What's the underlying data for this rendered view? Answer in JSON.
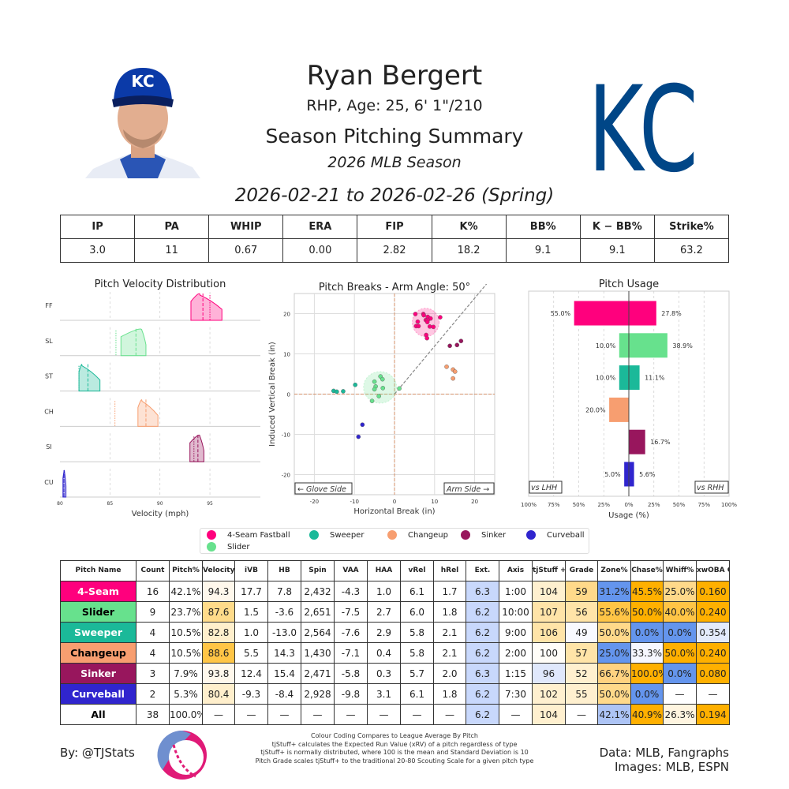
{
  "header": {
    "player_name": "Ryan Bergert",
    "bio": "RHP, Age: 25, 6' 1\"/210",
    "title": "Season Pitching Summary",
    "season": "2026 MLB Season",
    "date_range": "2026-02-21 to 2026-02-26 (Spring)",
    "team_logo_text": "KC",
    "cap_logo_text": "KC"
  },
  "season_stats": {
    "headers": [
      "IP",
      "PA",
      "WHIP",
      "ERA",
      "FIP",
      "K%",
      "BB%",
      "K − BB%",
      "Strike%"
    ],
    "values": [
      "3.0",
      "11",
      "0.67",
      "0.00",
      "2.82",
      "18.2",
      "9.1",
      "9.1",
      "63.2"
    ]
  },
  "pitch_colors": {
    "FF": "#FF007D",
    "SL": "#67E18D",
    "ST": "#1BB999",
    "CH": "#F79E70",
    "SI": "#98165D",
    "CU": "#3025CE"
  },
  "velocity_chart": {
    "title": "Pitch Velocity Distribution",
    "xlabel": "Velocity (mph)",
    "xlim": [
      80,
      100
    ],
    "xticks": [
      "80",
      "85",
      "90",
      "95"
    ],
    "rows": [
      {
        "code": "FF",
        "min": 93.1,
        "max": 96.2,
        "peak": 94.0,
        "mean": 94.3,
        "league": 95.0
      },
      {
        "code": "SL",
        "min": 86.1,
        "max": 88.6,
        "peak": 88.2,
        "mean": 87.6,
        "league": 85.6
      },
      {
        "code": "ST",
        "min": 81.9,
        "max": 84.0,
        "peak": 82.2,
        "mean": 82.8,
        "league": 81.9
      },
      {
        "code": "CH",
        "min": 87.8,
        "max": 89.8,
        "peak": 88.2,
        "mean": 88.6,
        "league": 85.5
      },
      {
        "code": "SI",
        "min": 93.0,
        "max": 94.4,
        "peak": 94.0,
        "mean": 93.8,
        "league": 93.4
      },
      {
        "code": "CU",
        "min": 80.3,
        "max": 80.6,
        "peak": 80.45,
        "mean": 80.4,
        "league": 80.4
      }
    ]
  },
  "break_chart": {
    "title": "Pitch Breaks - Arm Angle: 50°",
    "xlabel": "Horizontal Break (in)",
    "ylabel": "Induced Vertical Break (in)",
    "xlim": [
      -25,
      25
    ],
    "ylim": [
      -25,
      25
    ],
    "ticks": [
      "-20",
      "-10",
      "0",
      "10",
      "20"
    ],
    "arm_angle": 50,
    "glove_label": "← Glove Side",
    "arm_label": "Arm Side →",
    "points": {
      "FF": [
        [
          5.2,
          19.9
        ],
        [
          7.2,
          19.9
        ],
        [
          7.3,
          19.6
        ],
        [
          8.3,
          19.2
        ],
        [
          9.0,
          18.8
        ],
        [
          11.4,
          19.1
        ],
        [
          7.8,
          18.4
        ],
        [
          8.3,
          18.4
        ],
        [
          8.2,
          17.9
        ],
        [
          5.8,
          18.0
        ],
        [
          5.4,
          16.9
        ],
        [
          6.0,
          16.9
        ],
        [
          8.8,
          16.8
        ],
        [
          9.7,
          16.7
        ],
        [
          7.9,
          14.7
        ],
        [
          8.1,
          13.9
        ]
      ],
      "SL": [
        [
          -3.5,
          4.4
        ],
        [
          -3.0,
          3.7
        ],
        [
          -5.0,
          3.1
        ],
        [
          -4.7,
          1.9
        ],
        [
          -5.0,
          1.2
        ],
        [
          -2.9,
          1.5
        ],
        [
          -3.9,
          -0.5
        ],
        [
          -5.6,
          -1.7
        ],
        [
          1.2,
          1.4
        ]
      ],
      "ST": [
        [
          -15.2,
          0.8
        ],
        [
          -14.4,
          0.6
        ],
        [
          -12.8,
          0.7
        ],
        [
          -9.8,
          2.3
        ]
      ],
      "CH": [
        [
          13.0,
          6.8
        ],
        [
          14.6,
          6.1
        ],
        [
          15.1,
          5.6
        ],
        [
          14.6,
          3.9
        ]
      ],
      "SI": [
        [
          13.8,
          12.0
        ],
        [
          15.6,
          12.2
        ],
        [
          16.6,
          13.2
        ]
      ],
      "CU": [
        [
          -8.0,
          -7.6
        ],
        [
          -9.0,
          -10.6
        ]
      ]
    }
  },
  "usage_chart": {
    "title": "Pitch Usage",
    "xlabel": "Usage (%)",
    "xticks": [
      "100%",
      "75%",
      "50%",
      "25%",
      "0%",
      "25%",
      "50%",
      "75%",
      "100%"
    ],
    "lhh_label": "vs LHH",
    "rhh_label": "vs RHH",
    "bars": [
      {
        "code": "FF",
        "lhh": 55.0,
        "rhh": 27.8,
        "lhh_label": "55.0%",
        "rhh_label": "27.8%"
      },
      {
        "code": "SL",
        "lhh": 10.0,
        "rhh": 38.9,
        "lhh_label": "10.0%",
        "rhh_label": "38.9%"
      },
      {
        "code": "ST",
        "lhh": 10.0,
        "rhh": 11.1,
        "lhh_label": "10.0%",
        "rhh_label": "11.1%"
      },
      {
        "code": "CH",
        "lhh": 20.0,
        "rhh": 0,
        "lhh_label": "20.0%",
        "rhh_label": ""
      },
      {
        "code": "SI",
        "lhh": 0,
        "rhh": 16.7,
        "lhh_label": "",
        "rhh_label": "16.7%"
      },
      {
        "code": "CU",
        "lhh": 5.0,
        "rhh": 5.6,
        "lhh_label": "5.0%",
        "rhh_label": "5.6%"
      }
    ]
  },
  "legend": [
    {
      "code": "FF",
      "label": "4-Seam Fastball"
    },
    {
      "code": "ST",
      "label": "Sweeper"
    },
    {
      "code": "CH",
      "label": "Changeup"
    },
    {
      "code": "SI",
      "label": "Sinker"
    },
    {
      "code": "CU",
      "label": "Curveball"
    },
    {
      "code": "SL",
      "label": "Slider"
    }
  ],
  "pitch_table": {
    "headers": [
      "Pitch Name",
      "Count",
      "Pitch%",
      "Velocity",
      "iVB",
      "HB",
      "Spin",
      "VAA",
      "HAA",
      "vRel",
      "hRel",
      "Ext.",
      "Axis",
      "tjStuff +",
      "Grade",
      "Zone%",
      "Chase%",
      "Whiff%",
      "xwOBA Contact"
    ],
    "rows": [
      {
        "name": "4-Seam",
        "bg": "#FF007D",
        "fg": "#ffffff",
        "cells": [
          "16",
          "42.1%",
          "94.3",
          "17.7",
          "7.8",
          "2,432",
          "-4.3",
          "1.0",
          "6.1",
          "1.7",
          "6.3",
          "1:00",
          "104",
          "59",
          "31.2%",
          "45.5%",
          "25.0%",
          "0.160"
        ],
        "colors": [
          "",
          "",
          "#fff8ec",
          "",
          "",
          "",
          "",
          "",
          "",
          "",
          "#c8d8fc",
          "",
          "#fff0cf",
          "#ffd98a",
          "#6495ed",
          "#ffb000",
          "#ffd98a",
          "#ffb000"
        ]
      },
      {
        "name": "Slider",
        "bg": "#67E18D",
        "fg": "#000000",
        "cells": [
          "9",
          "23.7%",
          "87.6",
          "1.5",
          "-3.6",
          "2,651",
          "-7.5",
          "2.7",
          "6.0",
          "1.8",
          "6.2",
          "10:00",
          "107",
          "56",
          "55.6%",
          "50.0%",
          "40.0%",
          "0.240"
        ],
        "colors": [
          "",
          "",
          "#ffdb8a",
          "",
          "",
          "",
          "",
          "",
          "",
          "",
          "#c8d8fc",
          "",
          "#ffe4a8",
          "#ffe4a8",
          "#ffc546",
          "#ffb000",
          "#ffc546",
          "#ffb000"
        ]
      },
      {
        "name": "Sweeper",
        "bg": "#1BB999",
        "fg": "#ffffff",
        "cells": [
          "4",
          "10.5%",
          "82.8",
          "1.0",
          "-13.0",
          "2,564",
          "-7.6",
          "2.9",
          "5.8",
          "2.1",
          "6.2",
          "9:00",
          "106",
          "49",
          "50.0%",
          "0.0%",
          "0.0%",
          "0.354"
        ],
        "colors": [
          "",
          "",
          "#ffefcc",
          "",
          "",
          "",
          "",
          "",
          "",
          "",
          "#c8d8fc",
          "",
          "#ffe4a8",
          "#f8f9ff",
          "#ffd98a",
          "#6495ed",
          "#6495ed",
          "#e3eafc"
        ]
      },
      {
        "name": "Changeup",
        "bg": "#F79E70",
        "fg": "#000000",
        "cells": [
          "4",
          "10.5%",
          "88.6",
          "5.5",
          "14.3",
          "1,430",
          "-7.1",
          "0.4",
          "5.8",
          "2.1",
          "6.2",
          "2:00",
          "100",
          "57",
          "25.0%",
          "33.3%",
          "50.0%",
          "0.240"
        ],
        "colors": [
          "",
          "",
          "#ffc546",
          "",
          "",
          "",
          "",
          "",
          "",
          "",
          "#c8d8fc",
          "",
          "#fffdf8",
          "#ffe4a8",
          "#6495ed",
          "#f6f7ff",
          "#ffb000",
          "#ffb000"
        ]
      },
      {
        "name": "Sinker",
        "bg": "#98165D",
        "fg": "#ffffff",
        "cells": [
          "3",
          "7.9%",
          "93.8",
          "12.4",
          "15.4",
          "2,471",
          "-5.8",
          "0.3",
          "5.7",
          "2.0",
          "6.3",
          "1:15",
          "96",
          "52",
          "66.7%",
          "100.0%",
          "0.0%",
          "0.080"
        ],
        "colors": [
          "",
          "",
          "#fff8ec",
          "",
          "",
          "",
          "",
          "",
          "",
          "",
          "#c8d8fc",
          "",
          "#e0e8fc",
          "#fff0cf",
          "#ffd280",
          "#ffb000",
          "#6495ed",
          "#ffb000"
        ]
      },
      {
        "name": "Curveball",
        "bg": "#3025CE",
        "fg": "#ffffff",
        "cells": [
          "2",
          "5.3%",
          "80.4",
          "-9.3",
          "-8.4",
          "2,928",
          "-9.8",
          "3.1",
          "6.1",
          "1.8",
          "6.2",
          "7:30",
          "102",
          "55",
          "50.0%",
          "0.0%",
          "—",
          "—"
        ],
        "colors": [
          "",
          "",
          "#ffefcc",
          "",
          "",
          "",
          "",
          "",
          "",
          "",
          "#c8d8fc",
          "",
          "#fff0cf",
          "#fff0cf",
          "#ffd98a",
          "#6495ed",
          "",
          ""
        ]
      },
      {
        "name": "All",
        "bg": "#ffffff",
        "fg": "#000000",
        "cells": [
          "38",
          "100.0%",
          "—",
          "—",
          "—",
          "—",
          "—",
          "—",
          "—",
          "—",
          "6.2",
          "—",
          "104",
          "—",
          "42.1%",
          "40.9%",
          "26.3%",
          "0.194"
        ],
        "colors": [
          "",
          "",
          "",
          "",
          "",
          "",
          "",
          "",
          "",
          "",
          "#c8d8fc",
          "",
          "#fff0cf",
          "",
          "#adc4f5",
          "#ffb000",
          "#fff5e0",
          "#ffb000"
        ]
      }
    ]
  },
  "footer": {
    "byline": "By: @TJStats",
    "notes": [
      "Colour Coding Compares to League Average By Pitch",
      "tjStuff+ calculates the Expected Run Value (xRV) of a pitch regardless of type",
      "tjStuff+ is normally distributed, where 100 is the mean and Standard Deviation is 10",
      "Pitch Grade scales tjStuff+ to the traditional 20-80 Scouting Scale for a given pitch type"
    ],
    "data_source": "Data: MLB, Fangraphs",
    "image_source": "Images: MLB, ESPN"
  }
}
